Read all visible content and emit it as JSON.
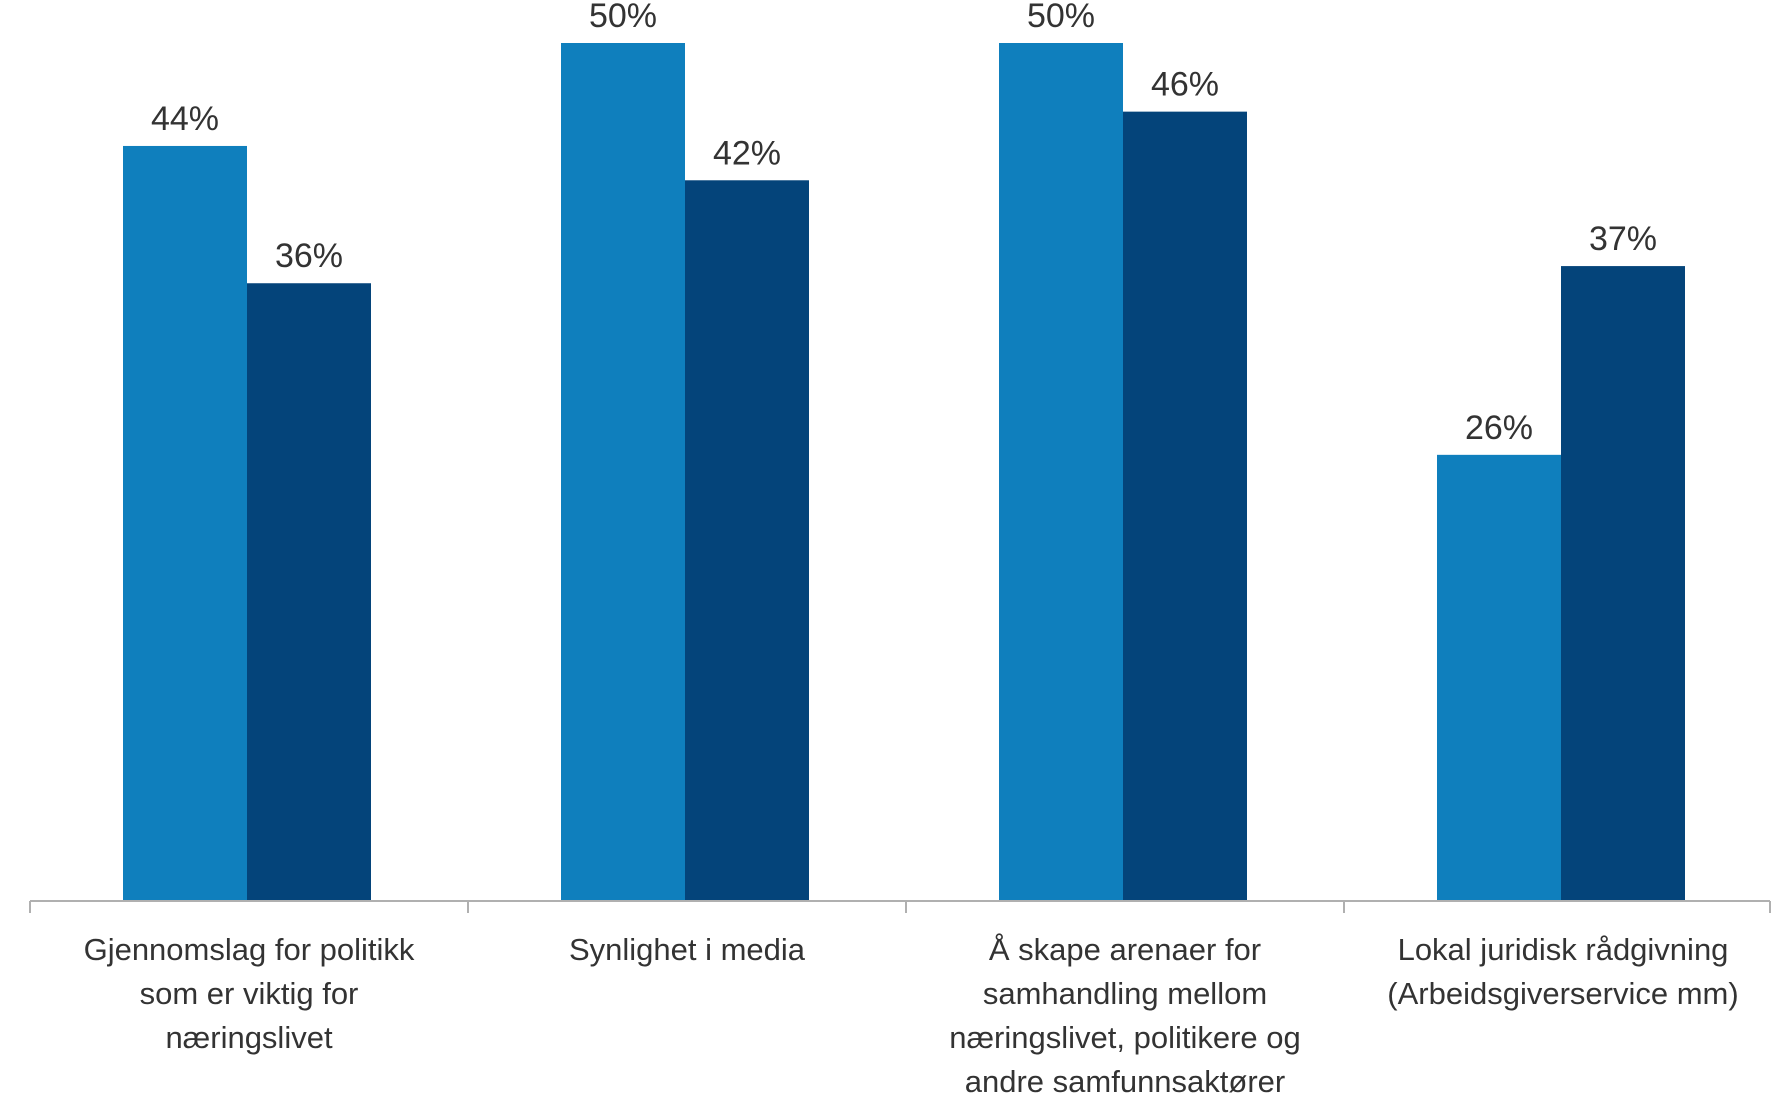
{
  "chart_data": {
    "type": "bar",
    "categories": [
      [
        "Gjennomslag for politikk",
        "som er viktig for",
        "næringslivet"
      ],
      [
        "Synlighet i media"
      ],
      [
        "Å skape arenaer for",
        "samhandling mellom",
        "næringslivet, politikere og",
        "andre samfunnsaktører"
      ],
      [
        "Lokal juridisk rådgivning",
        "(Arbeidsgiverservice mm)"
      ]
    ],
    "series": [
      {
        "values": [
          44,
          50,
          50,
          26
        ],
        "labels": [
          "44%",
          "50%",
          "50%",
          "26%"
        ],
        "color": "#0f7fbd"
      },
      {
        "values": [
          36,
          42,
          46,
          37
        ],
        "labels": [
          "36%",
          "42%",
          "46%",
          "37%"
        ],
        "color": "#04447a"
      }
    ],
    "ylim": [
      0,
      50
    ],
    "grid": false,
    "legend": false,
    "axis_color": "#b0b0b0",
    "text_color": "#333333"
  }
}
